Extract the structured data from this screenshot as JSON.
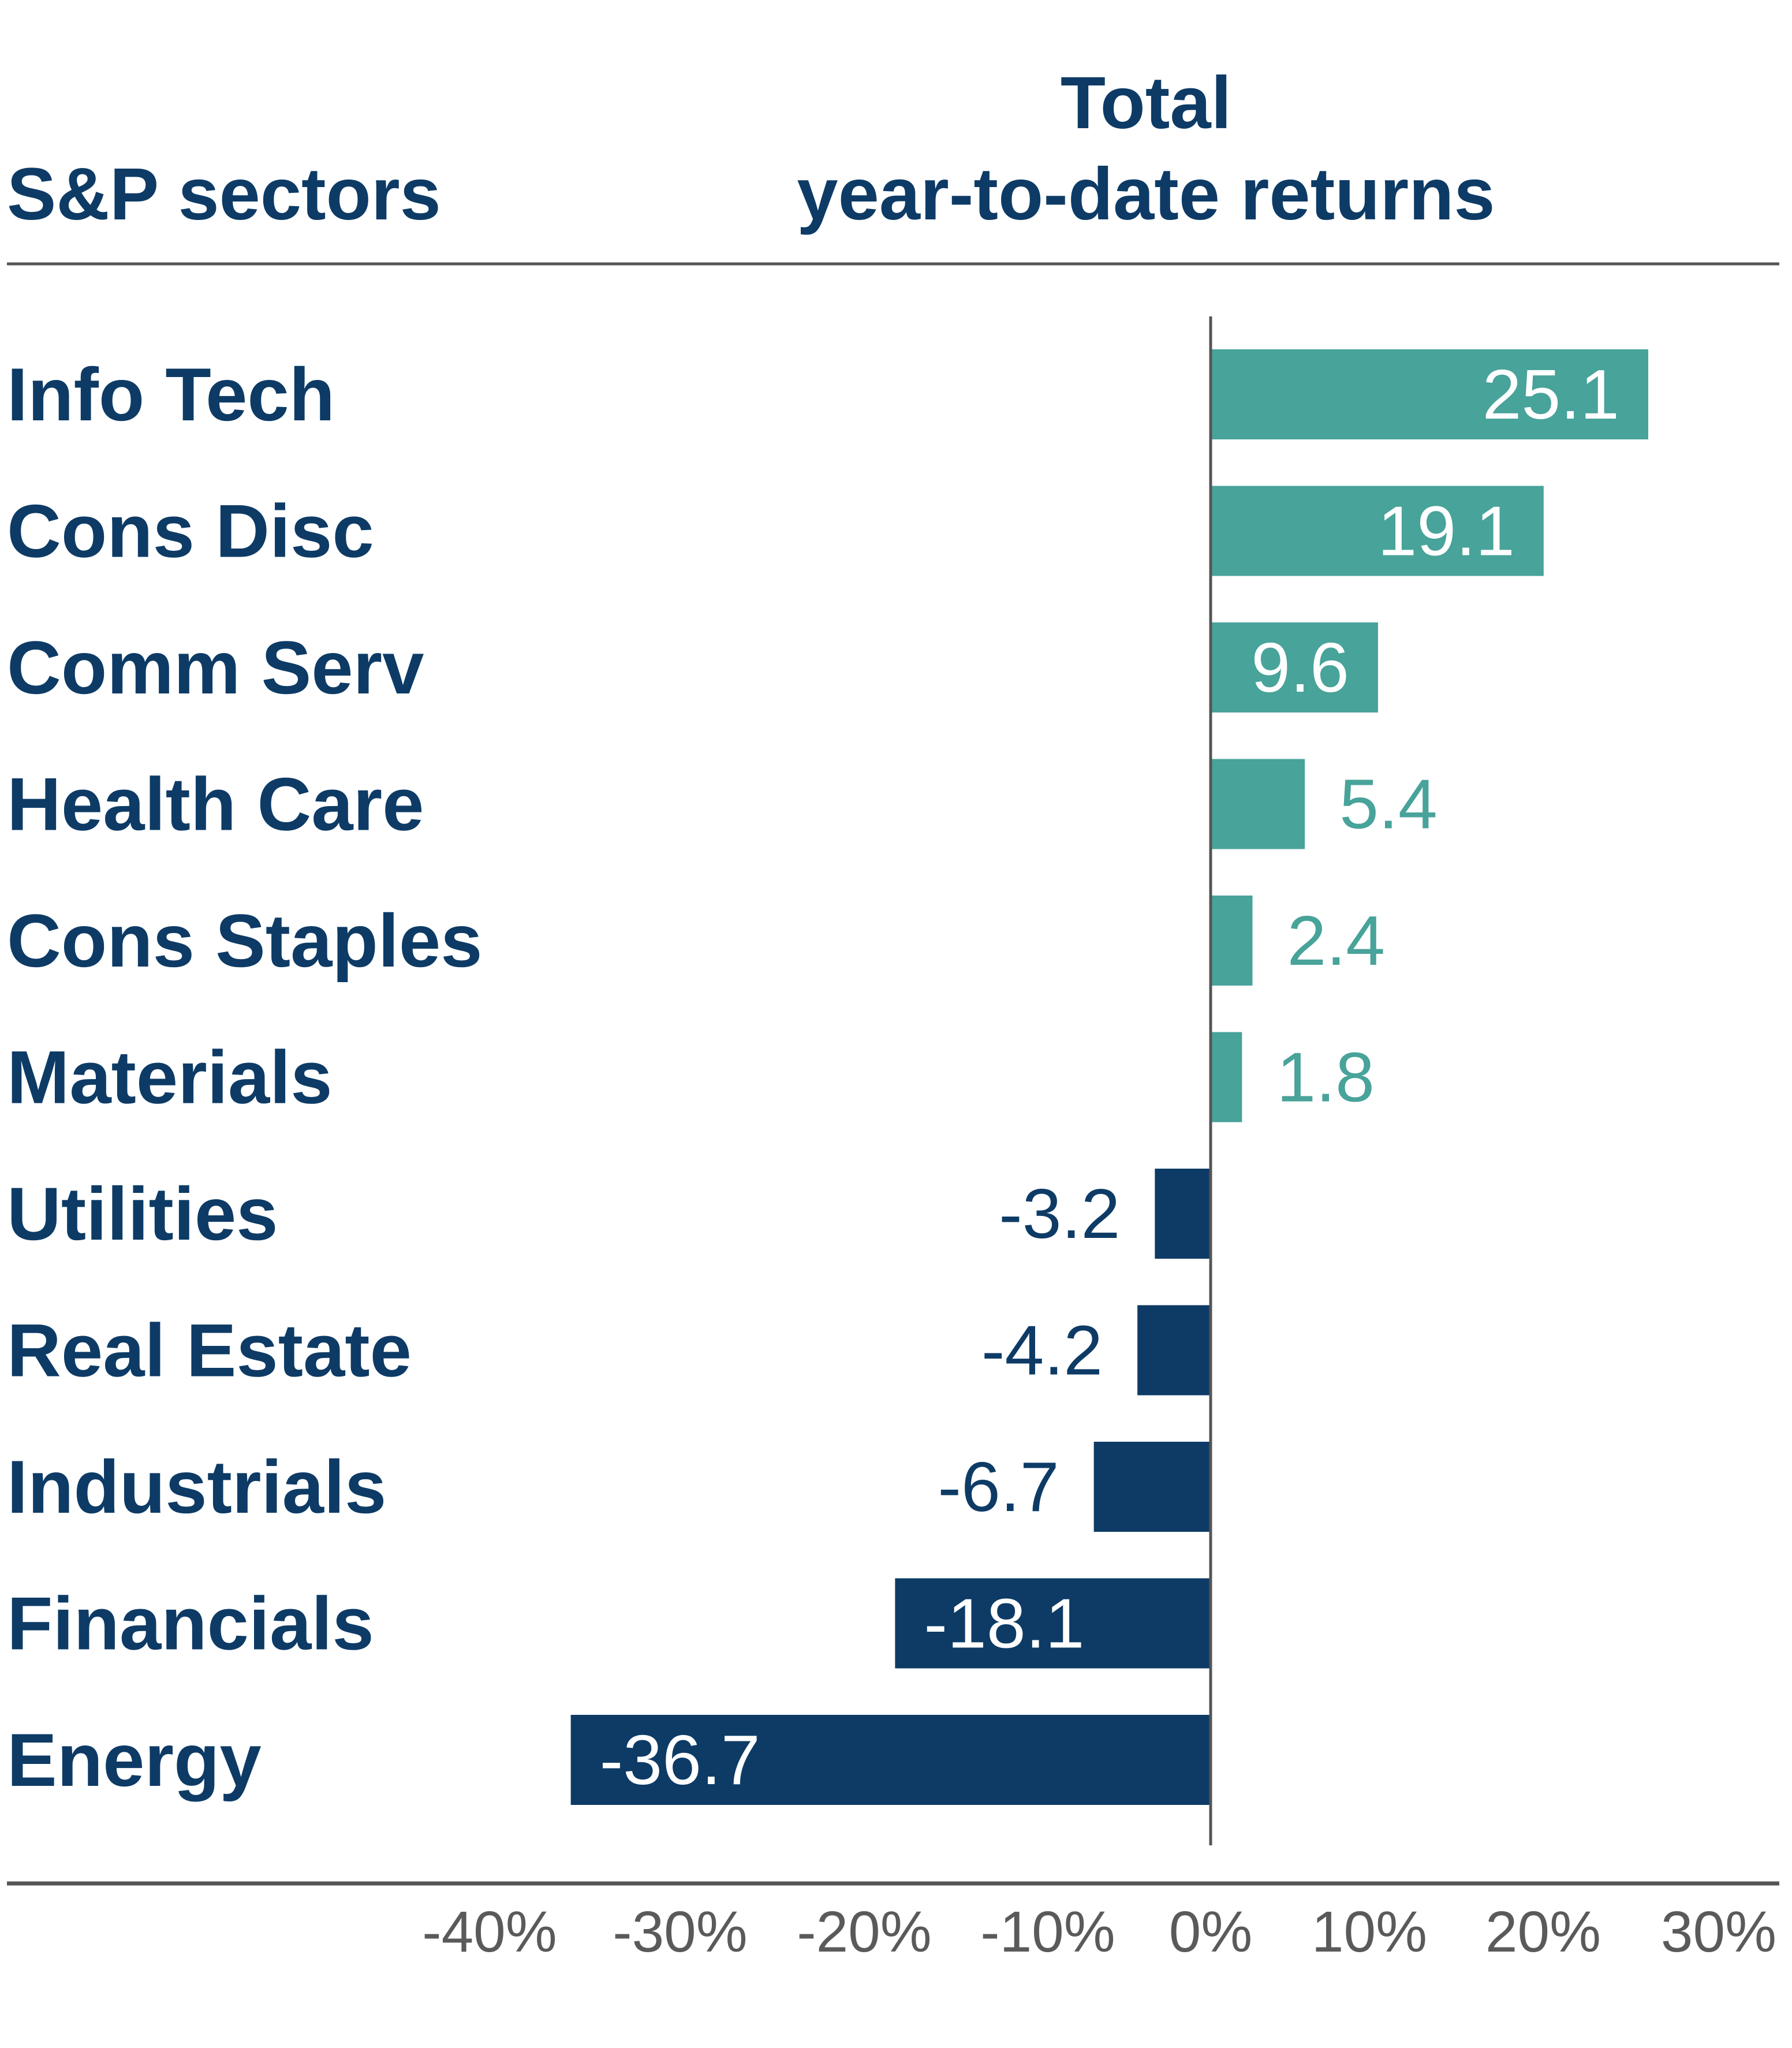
{
  "chart_data": {
    "type": "bar",
    "orientation": "horizontal",
    "title": "Total year-to-date returns",
    "title_lines": [
      "Total",
      "year-to-date returns"
    ],
    "category_header": "S&P sectors",
    "categories": [
      "Info Tech",
      "Cons Disc",
      "Comm Serv",
      "Health Care",
      "Cons Staples",
      "Materials",
      "Utilities",
      "Real Estate",
      "Industrials",
      "Financials",
      "Energy"
    ],
    "values": [
      25.1,
      19.1,
      9.6,
      5.4,
      2.4,
      1.8,
      -3.2,
      -4.2,
      -6.7,
      -18.1,
      -36.7
    ],
    "value_labels": [
      "25.1",
      "19.1",
      "9.6",
      "5.4",
      "2.4",
      "1.8",
      "-3.2",
      "-4.2",
      "-6.7",
      "-18.1",
      "-36.7"
    ],
    "xlim": [
      -40,
      30
    ],
    "xticks": [
      -40,
      -30,
      -20,
      -10,
      0,
      10,
      20,
      30
    ],
    "xtick_labels": [
      "-40%",
      "-30%",
      "-20%",
      "-10%",
      "0%",
      "10%",
      "20%",
      "30%"
    ],
    "colors": {
      "positive": "#48a39a",
      "negative": "#0d3b66",
      "text": "#0d3b66",
      "axis": "#555555"
    }
  }
}
